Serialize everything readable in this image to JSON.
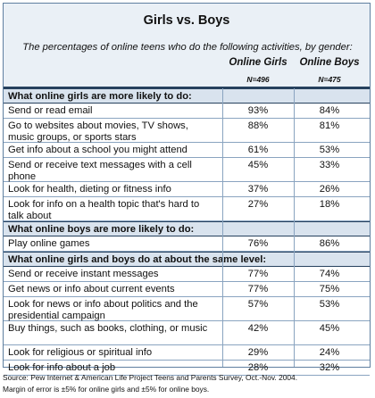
{
  "title": "Girls vs. Boys",
  "subtitle": "The percentages of online teens who do the following activities, by gender:",
  "columns": [
    {
      "label": "Online Girls",
      "n": "N=496"
    },
    {
      "label": "Online Boys",
      "n": "N=475"
    }
  ],
  "sections": [
    {
      "heading": "What online girls are more likely to do:",
      "rows": [
        {
          "label": "Send or read email",
          "girls": "93%",
          "boys": "84%"
        },
        {
          "label": "Go to websites about movies, TV shows, music groups, or sports stars",
          "girls": "88%",
          "boys": "81%"
        },
        {
          "label": "Get info about a school you might attend",
          "girls": "61%",
          "boys": "53%"
        },
        {
          "label": "Send or receive text messages with a cell phone",
          "girls": "45%",
          "boys": "33%"
        },
        {
          "label": "Look for health, dieting or fitness info",
          "girls": "37%",
          "boys": "26%"
        },
        {
          "label": "Look for info on a health topic that's hard to talk about",
          "girls": "27%",
          "boys": "18%"
        }
      ]
    },
    {
      "heading": "What online boys are more likely to do:",
      "rows": [
        {
          "label": "Play online games",
          "girls": "76%",
          "boys": "86%"
        }
      ]
    },
    {
      "heading": "What online girls and boys do at about the same level:",
      "rows": [
        {
          "label": "Send or receive instant messages",
          "girls": "77%",
          "boys": "74%"
        },
        {
          "label": "Get news or info about current events",
          "girls": "77%",
          "boys": "75%"
        },
        {
          "label": "Look for news or info about politics and the presidential campaign",
          "girls": "57%",
          "boys": "53%"
        },
        {
          "label": "Buy things, such as books, clothing, or music",
          "girls": "42%",
          "boys": "45%"
        },
        {
          "label": "Look for religious or spiritual info",
          "girls": "29%",
          "boys": "24%"
        },
        {
          "label": "Look for info about a job",
          "girls": "28%",
          "boys": "32%"
        }
      ]
    }
  ],
  "source": "Source: Pew Internet & American Life Project Teens and Parents Survey, Oct.-Nov. 2004.",
  "margin_note": "Margin of error is ±5% for online girls and ±5% for online boys."
}
